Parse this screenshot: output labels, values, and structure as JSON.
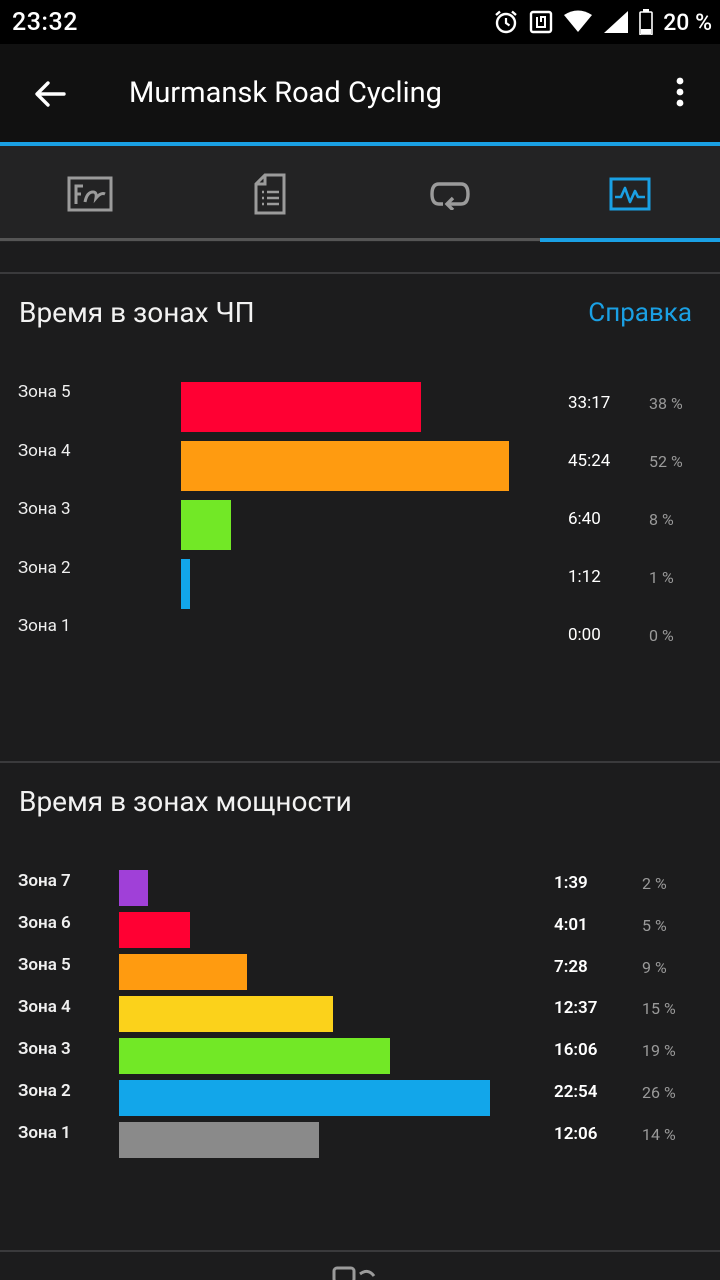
{
  "status_bar": {
    "time": "23:32",
    "battery": "20 %",
    "icons": [
      "alarm-icon",
      "nfc-icon",
      "wifi-icon",
      "signal-icon",
      "battery-icon"
    ]
  },
  "app_bar": {
    "title": "Murmansk Road Cycling",
    "back_icon": "arrow-back-icon",
    "menu_icon": "more-vert-icon"
  },
  "tabs": [
    {
      "icon": "activity-map-icon",
      "selected": false
    },
    {
      "icon": "details-doc-icon",
      "selected": false
    },
    {
      "icon": "laps-loop-icon",
      "selected": false
    },
    {
      "icon": "stats-chart-icon",
      "selected": true
    }
  ],
  "colors": {
    "accent": "#1aa0e4",
    "zone_red": "#ff0033",
    "zone_orange": "#ff9b10",
    "zone_green": "#72e826",
    "zone_blue": "#12a6ea",
    "zone_purple": "#a040d8",
    "zone_yellow": "#fbd21b",
    "zone_gray": "#8a8a8a"
  },
  "hr_zones": {
    "title": "Время в зонах ЧП",
    "help_label": "Справка",
    "rows": [
      {
        "label": "Зона 5",
        "time": "33:17",
        "percent": "38 %",
        "value": 38,
        "color": "#ff0033"
      },
      {
        "label": "Зона 4",
        "time": "45:24",
        "percent": "52 %",
        "value": 52,
        "color": "#ff9b10"
      },
      {
        "label": "Зона 3",
        "time": "6:40",
        "percent": "8 %",
        "value": 8,
        "color": "#72e826"
      },
      {
        "label": "Зона 2",
        "time": "1:12",
        "percent": "1 %",
        "value": 1,
        "color": "#12a6ea"
      },
      {
        "label": "Зона 1",
        "time": "0:00",
        "percent": "0 %",
        "value": 0,
        "color": "#8a8a8a"
      }
    ]
  },
  "power_zones": {
    "title": "Время в зонах мощности",
    "rows": [
      {
        "label": "Зона 7",
        "time": "1:39",
        "percent": "2 %",
        "value": 2,
        "color": "#a040d8"
      },
      {
        "label": "Зона 6",
        "time": "4:01",
        "percent": "5 %",
        "value": 5,
        "color": "#ff0033"
      },
      {
        "label": "Зона 5",
        "time": "7:28",
        "percent": "9 %",
        "value": 9,
        "color": "#ff9b10"
      },
      {
        "label": "Зона 4",
        "time": "12:37",
        "percent": "15 %",
        "value": 15,
        "color": "#fbd21b"
      },
      {
        "label": "Зона 3",
        "time": "16:06",
        "percent": "19 %",
        "value": 19,
        "color": "#72e826"
      },
      {
        "label": "Зона 2",
        "time": "22:54",
        "percent": "26 %",
        "value": 26,
        "color": "#12a6ea"
      },
      {
        "label": "Зона 1",
        "time": "12:06",
        "percent": "14 %",
        "value": 14,
        "color": "#8a8a8a"
      }
    ]
  }
}
